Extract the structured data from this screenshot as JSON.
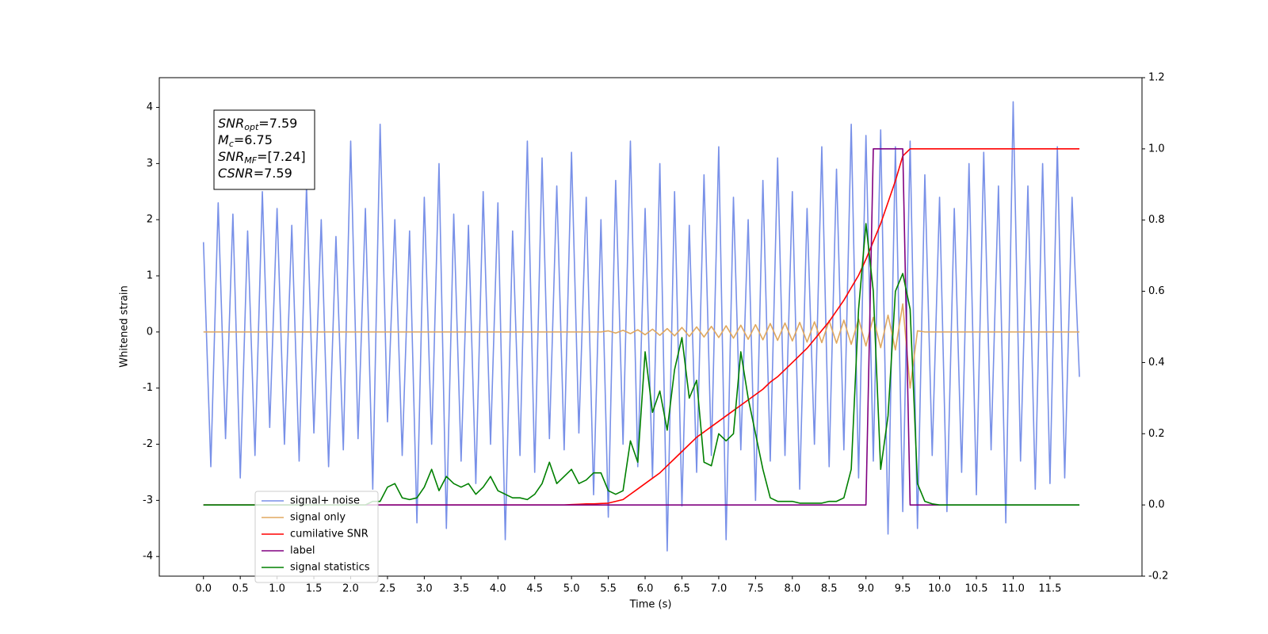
{
  "chart_data": {
    "type": "line",
    "xlabel": "Time (s)",
    "ylabel": "Whitened strain",
    "xlim": [
      -0.6,
      12.75
    ],
    "ylim": [
      -4.35,
      4.53
    ],
    "y2lim": [
      -0.2,
      1.2
    ],
    "xticks": [
      {
        "value": 0,
        "label": "0.0"
      },
      0.5,
      {
        "value": 1,
        "label": "1.0"
      },
      1.5,
      {
        "value": 2,
        "label": "2.0"
      },
      2.5,
      {
        "value": 3,
        "label": "3.0"
      },
      3.5,
      {
        "value": 4,
        "label": "4.0"
      },
      4.5,
      {
        "value": 5,
        "label": "5.0"
      },
      5.5,
      {
        "value": 6,
        "label": "6.0"
      },
      6.5,
      {
        "value": 7,
        "label": "7.0"
      },
      7.5,
      {
        "value": 8,
        "label": "8.0"
      },
      8.5,
      {
        "value": 9,
        "label": "9.0"
      },
      9.5,
      {
        "value": 10,
        "label": "10.0"
      },
      10.5,
      {
        "value": 11,
        "label": "11.0"
      },
      11.5
    ],
    "yticks": [
      -4,
      -3,
      -2,
      -1,
      0,
      1,
      2,
      3,
      4
    ],
    "y2ticks": [
      -0.2,
      {
        "value": 0,
        "label": "0.0"
      },
      0.2,
      0.4,
      0.6,
      0.8,
      {
        "value": 1,
        "label": "1.0"
      },
      1.2
    ],
    "legend_loc": "lower left",
    "annotations": [
      {
        "text": "SNR",
        "sub": "opt",
        "after": "=7.59"
      },
      {
        "text": "M",
        "sub": "c",
        "after": "=6.75"
      },
      {
        "text": "SNR",
        "sub": "MF",
        "after": "=[7.24]"
      },
      {
        "text": "CSNR",
        "after": "=7.59"
      }
    ],
    "x": [
      0,
      0.1,
      0.2,
      0.3,
      0.4,
      0.5,
      0.6,
      0.7,
      0.8,
      0.9,
      1,
      1.1,
      1.2,
      1.3,
      1.4,
      1.5,
      1.6,
      1.7,
      1.8,
      1.9,
      2,
      2.1,
      2.2,
      2.3,
      2.4,
      2.5,
      2.6,
      2.7,
      2.8,
      2.9,
      3,
      3.1,
      3.2,
      3.3,
      3.4,
      3.5,
      3.6,
      3.7,
      3.8,
      3.9,
      4,
      4.1,
      4.2,
      4.3,
      4.4,
      4.5,
      4.6,
      4.7,
      4.8,
      4.9,
      5,
      5.1,
      5.2,
      5.3,
      5.4,
      5.5,
      5.6,
      5.7,
      5.8,
      5.9,
      6,
      6.1,
      6.2,
      6.3,
      6.4,
      6.5,
      6.6,
      6.7,
      6.8,
      6.9,
      7,
      7.1,
      7.2,
      7.3,
      7.4,
      7.5,
      7.6,
      7.7,
      7.8,
      7.9,
      8,
      8.1,
      8.2,
      8.3,
      8.4,
      8.5,
      8.6,
      8.7,
      8.8,
      8.9,
      9,
      9.1,
      9.2,
      9.3,
      9.4,
      9.5,
      9.6,
      9.7,
      9.8,
      9.9,
      10,
      10.1,
      10.2,
      10.3,
      10.4,
      10.5,
      10.6,
      10.7,
      10.8,
      10.9,
      11,
      11.1,
      11.2,
      11.3,
      11.4,
      11.5,
      11.6,
      11.7,
      11.8,
      11.9
    ],
    "series": [
      {
        "name": "signal+ noise",
        "color": "#7890e8",
        "axis": "y",
        "values": [
          1.6,
          -2.4,
          2.3,
          -1.9,
          2.1,
          -2.6,
          1.8,
          -2.2,
          2.5,
          -1.7,
          2.2,
          -2.0,
          1.9,
          -2.3,
          2.6,
          -1.8,
          2.0,
          -2.4,
          1.7,
          -2.1,
          3.4,
          -1.9,
          2.2,
          -2.8,
          3.7,
          -1.6,
          2.0,
          -2.2,
          1.8,
          -3.4,
          2.4,
          -2.0,
          3.0,
          -3.5,
          2.1,
          -2.3,
          1.9,
          -2.7,
          2.5,
          -2.0,
          2.3,
          -3.7,
          1.8,
          -2.2,
          3.4,
          -2.5,
          3.1,
          -1.9,
          2.6,
          -2.1,
          3.2,
          -1.8,
          2.4,
          -2.9,
          2.0,
          -3.3,
          2.7,
          -2.0,
          3.4,
          -2.4,
          2.2,
          -2.6,
          3.0,
          -3.9,
          2.5,
          -3.1,
          1.9,
          -2.5,
          2.8,
          -2.2,
          3.3,
          -3.7,
          2.4,
          -2.1,
          2.0,
          -3.0,
          2.7,
          -2.3,
          3.1,
          -2.2,
          2.5,
          -2.8,
          2.2,
          -2.0,
          3.3,
          -2.4,
          2.9,
          -2.1,
          3.7,
          -2.6,
          3.5,
          -2.3,
          3.6,
          -3.6,
          3.3,
          -3.2,
          3.4,
          -3.5,
          2.8,
          -2.2,
          2.4,
          -3.2,
          2.2,
          -2.5,
          3.0,
          -2.9,
          3.2,
          -2.1,
          2.6,
          -3.4,
          4.1,
          -2.3,
          2.6,
          -2.8,
          3.0,
          -2.7,
          3.3,
          -2.6,
          2.4,
          -0.8
        ]
      },
      {
        "name": "signal only",
        "color": "#e0a860",
        "axis": "y",
        "values": [
          0,
          0,
          0,
          0,
          0,
          0,
          0,
          0,
          0,
          0,
          0,
          0,
          0,
          0,
          0,
          0,
          0,
          0,
          0,
          0,
          0,
          0,
          0,
          0,
          0,
          0,
          0,
          0,
          0,
          0,
          0,
          0,
          0,
          0,
          0,
          0,
          0,
          0,
          0,
          0,
          0,
          0,
          0,
          0,
          0,
          0,
          0,
          0,
          0,
          0,
          0,
          0,
          0,
          0,
          0,
          0.02,
          -0.02,
          0.03,
          -0.03,
          0.04,
          -0.05,
          0.05,
          -0.06,
          0.06,
          -0.07,
          0.08,
          -0.08,
          0.09,
          -0.09,
          0.1,
          -0.1,
          0.11,
          -0.11,
          0.12,
          -0.13,
          0.13,
          -0.14,
          0.15,
          -0.15,
          0.16,
          -0.16,
          0.17,
          -0.18,
          0.18,
          -0.19,
          0.2,
          -0.2,
          0.21,
          -0.22,
          0.23,
          -0.25,
          0.26,
          -0.28,
          0.3,
          -0.32,
          0.5,
          -1.0,
          0.02,
          0,
          0,
          0,
          0,
          0,
          0,
          0,
          0,
          0,
          0,
          0,
          0,
          0,
          0,
          0,
          0,
          0,
          0,
          0,
          0,
          0,
          0
        ]
      },
      {
        "name": "cumilative SNR",
        "color": "#ff0000",
        "axis": "y2",
        "values": [
          0,
          0,
          0,
          0,
          0,
          0,
          0,
          0,
          0,
          0,
          0,
          0,
          0,
          0,
          0,
          0,
          0,
          0,
          0,
          0,
          0,
          0,
          0,
          0,
          0,
          0,
          0,
          0,
          0,
          0,
          0,
          0,
          0,
          0,
          0,
          0,
          0,
          0,
          0,
          0,
          0,
          0,
          0,
          0,
          0,
          0,
          0,
          0,
          0,
          0,
          0.001,
          0.002,
          0.003,
          0.003,
          0.004,
          0.005,
          0.01,
          0.015,
          0.03,
          0.045,
          0.06,
          0.075,
          0.09,
          0.11,
          0.13,
          0.15,
          0.17,
          0.19,
          0.205,
          0.22,
          0.235,
          0.25,
          0.265,
          0.28,
          0.295,
          0.31,
          0.325,
          0.345,
          0.36,
          0.38,
          0.4,
          0.42,
          0.44,
          0.465,
          0.49,
          0.515,
          0.545,
          0.575,
          0.61,
          0.645,
          0.69,
          0.74,
          0.79,
          0.85,
          0.91,
          0.98,
          1,
          1,
          1,
          1,
          1,
          1,
          1,
          1,
          1,
          1,
          1,
          1,
          1,
          1,
          1,
          1,
          1,
          1,
          1,
          1,
          1,
          1,
          1,
          1
        ]
      },
      {
        "name": "label",
        "color": "#800080",
        "axis": "y2",
        "values": [
          0,
          0,
          0,
          0,
          0,
          0,
          0,
          0,
          0,
          0,
          0,
          0,
          0,
          0,
          0,
          0,
          0,
          0,
          0,
          0,
          0,
          0,
          0,
          0,
          0,
          0,
          0,
          0,
          0,
          0,
          0,
          0,
          0,
          0,
          0,
          0,
          0,
          0,
          0,
          0,
          0,
          0,
          0,
          0,
          0,
          0,
          0,
          0,
          0,
          0,
          0,
          0,
          0,
          0,
          0,
          0,
          0,
          0,
          0,
          0,
          0,
          0,
          0,
          0,
          0,
          0,
          0,
          0,
          0,
          0,
          0,
          0,
          0,
          0,
          0,
          0,
          0,
          0,
          0,
          0,
          0,
          0,
          0,
          0,
          0,
          0,
          0,
          0,
          0,
          0,
          0,
          1,
          1,
          1,
          1,
          1,
          0,
          0,
          0,
          0,
          0,
          0,
          0,
          0,
          0,
          0,
          0,
          0,
          0,
          0,
          0,
          0,
          0,
          0,
          0,
          0,
          0,
          0,
          0,
          0
        ]
      },
      {
        "name": "signal statistics",
        "color": "#008000",
        "axis": "y2",
        "values": [
          0,
          0,
          0,
          0,
          0,
          0,
          0,
          0,
          0,
          0,
          0,
          0,
          0,
          0,
          0,
          0,
          0,
          0,
          0,
          0,
          0,
          0,
          0,
          0.01,
          0.01,
          0.05,
          0.06,
          0.02,
          0.015,
          0.02,
          0.05,
          0.1,
          0.04,
          0.08,
          0.06,
          0.05,
          0.06,
          0.03,
          0.05,
          0.08,
          0.04,
          0.03,
          0.02,
          0.02,
          0.015,
          0.03,
          0.06,
          0.12,
          0.06,
          0.08,
          0.1,
          0.06,
          0.07,
          0.09,
          0.09,
          0.04,
          0.03,
          0.04,
          0.18,
          0.12,
          0.43,
          0.26,
          0.32,
          0.21,
          0.38,
          0.47,
          0.3,
          0.35,
          0.12,
          0.11,
          0.2,
          0.18,
          0.2,
          0.43,
          0.3,
          0.2,
          0.1,
          0.02,
          0.01,
          0.01,
          0.01,
          0.005,
          0.005,
          0.005,
          0.005,
          0.01,
          0.01,
          0.02,
          0.1,
          0.55,
          0.79,
          0.6,
          0.1,
          0.25,
          0.6,
          0.65,
          0.55,
          0.06,
          0.01,
          0.003,
          0,
          0,
          0,
          0,
          0,
          0,
          0,
          0,
          0,
          0,
          0,
          0,
          0,
          0,
          0,
          0,
          0,
          0,
          0,
          0
        ]
      }
    ]
  }
}
